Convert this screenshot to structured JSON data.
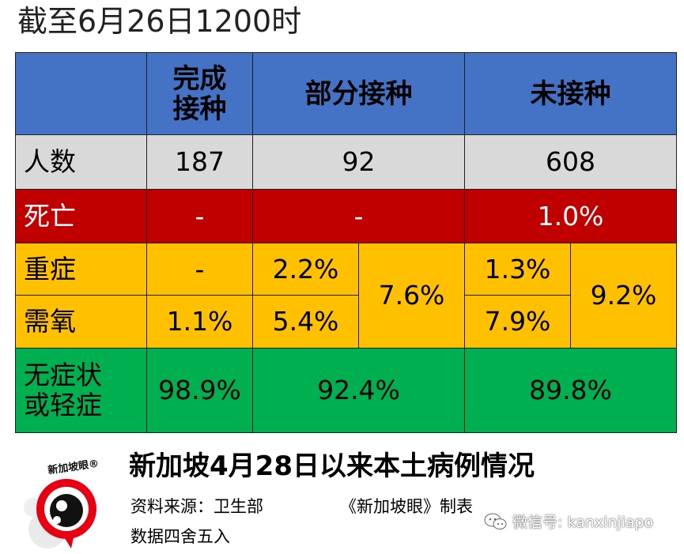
{
  "header": {
    "date_note": "截至6月26日1200时"
  },
  "table": {
    "head": {
      "full": "完成\n接种",
      "partial": "部分接种",
      "none": "未接种"
    },
    "rows": {
      "people": {
        "label": "人数",
        "full": "187",
        "partial": "92",
        "none": "608"
      },
      "death": {
        "label": "死亡",
        "full": "-",
        "partial": "-",
        "none": "1.0%"
      },
      "severe": {
        "label": "重症",
        "full": "-",
        "partial": "2.2%",
        "partial_total": "7.6%",
        "none": "1.3%",
        "none_total": "9.2%"
      },
      "oxygen": {
        "label": "需氧",
        "full": "1.1%",
        "partial": "5.4%",
        "none": "7.9%"
      },
      "mild": {
        "label": "无症状\n或轻症",
        "full": "98.9%",
        "partial": "92.4%",
        "none": "89.8%"
      }
    }
  },
  "footer": {
    "title": "新加坡4月28日以来本土病例情况",
    "source": "资料来源：卫生部",
    "credit": "《新加坡眼》制表",
    "note": "数据四舍五入",
    "logo_text": "新加坡眼®",
    "wechat": "微信号: kanxinjiapo"
  },
  "colors": {
    "header": "#4472c4",
    "people": "#d9d9d9",
    "death": "#c00000",
    "severe_oxygen": "#ffc000",
    "mild": "#00b050"
  },
  "icons": {
    "logo": "xinjiapoyan-eye-logo",
    "wechat": "wechat-icon"
  }
}
